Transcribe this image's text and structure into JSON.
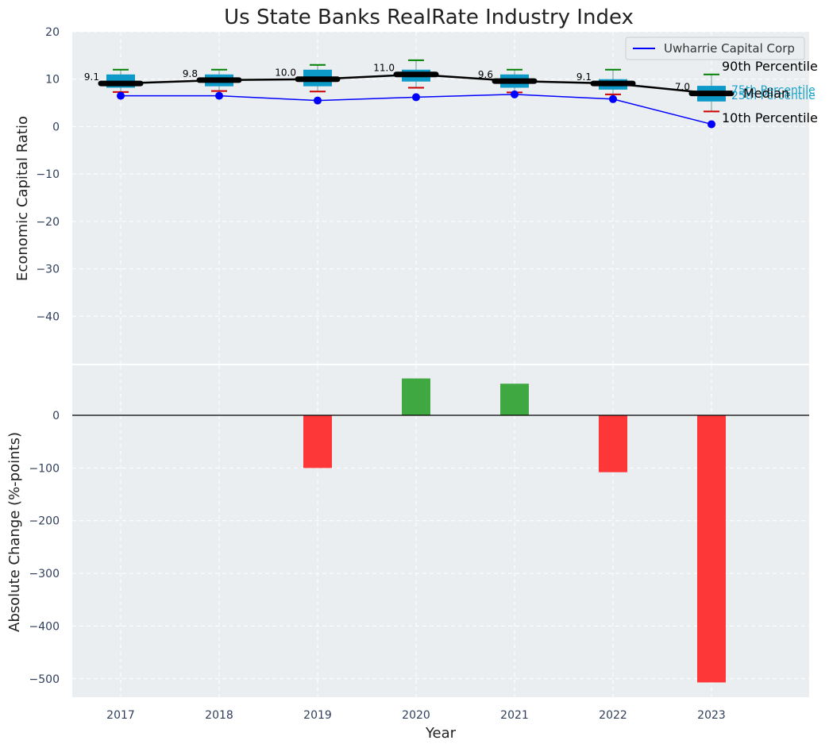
{
  "chart_data": [
    {
      "type": "box",
      "title": "Us State Banks RealRate Industry Index",
      "ylabel": "Economic Capital Ratio",
      "ylim": [
        -50,
        20
      ],
      "yticks": [
        20,
        10,
        0,
        -10,
        -20,
        -30,
        -40
      ],
      "categories": [
        "2017",
        "2018",
        "2019",
        "2020",
        "2021",
        "2022",
        "2023"
      ],
      "grid": true,
      "legend": {
        "position": "top-right",
        "entries": [
          "Uwharrie Capital Corp"
        ]
      },
      "boxes": [
        {
          "category": "2017",
          "p10": 7.3,
          "p25": 8.2,
          "median": 9.1,
          "p75": 11.0,
          "p90": 12.0,
          "label": "9.1"
        },
        {
          "category": "2018",
          "p10": 7.5,
          "p25": 8.5,
          "median": 9.8,
          "p75": 11.0,
          "p90": 12.0,
          "label": "9.8"
        },
        {
          "category": "2019",
          "p10": 7.4,
          "p25": 8.5,
          "median": 10.0,
          "p75": 12.0,
          "p90": 13.0,
          "label": "10.0"
        },
        {
          "category": "2020",
          "p10": 8.2,
          "p25": 9.5,
          "median": 11.0,
          "p75": 12.0,
          "p90": 14.0,
          "label": "11.0"
        },
        {
          "category": "2021",
          "p10": 7.2,
          "p25": 8.2,
          "median": 9.6,
          "p75": 11.0,
          "p90": 12.0,
          "label": "9.6"
        },
        {
          "category": "2022",
          "p10": 6.8,
          "p25": 7.8,
          "median": 9.1,
          "p75": 10.0,
          "p90": 12.0,
          "label": "9.1"
        },
        {
          "category": "2023",
          "p10": 3.2,
          "p25": 5.3,
          "median": 7.0,
          "p75": 8.6,
          "p90": 11.0,
          "label": "7.0"
        }
      ],
      "series": [
        {
          "name": "Uwharrie Capital Corp",
          "color": "#0000ff",
          "values": [
            6.5,
            6.5,
            5.5,
            6.2,
            6.8,
            5.8,
            0.5
          ]
        },
        {
          "name": "Median",
          "color": "#000000",
          "values": [
            9.1,
            9.8,
            10.0,
            11.0,
            9.6,
            9.1,
            7.0
          ]
        }
      ],
      "annotations": {
        "p90": "90th Percentile",
        "p75": "75th Percentile",
        "median": "Median",
        "p25": "25th Percentile",
        "p10": "10th Percentile"
      }
    },
    {
      "type": "bar",
      "xlabel": "Year",
      "ylabel": "Absolute Change (%-points)",
      "ylim": [
        -535,
        95
      ],
      "yticks": [
        0,
        -100,
        -200,
        -300,
        -400,
        -500
      ],
      "categories": [
        "2017",
        "2018",
        "2019",
        "2020",
        "2021",
        "2022",
        "2023"
      ],
      "values": [
        0,
        0,
        -100,
        70,
        60,
        -108,
        -507
      ],
      "positive_color": "#2ca02c",
      "negative_color": "#ff2222"
    }
  ],
  "colors": {
    "plot_bg": "#eaeef0",
    "box_fill": "#0e9ac8",
    "whisker_hi": "#008000",
    "whisker_lo": "#cc0000"
  }
}
